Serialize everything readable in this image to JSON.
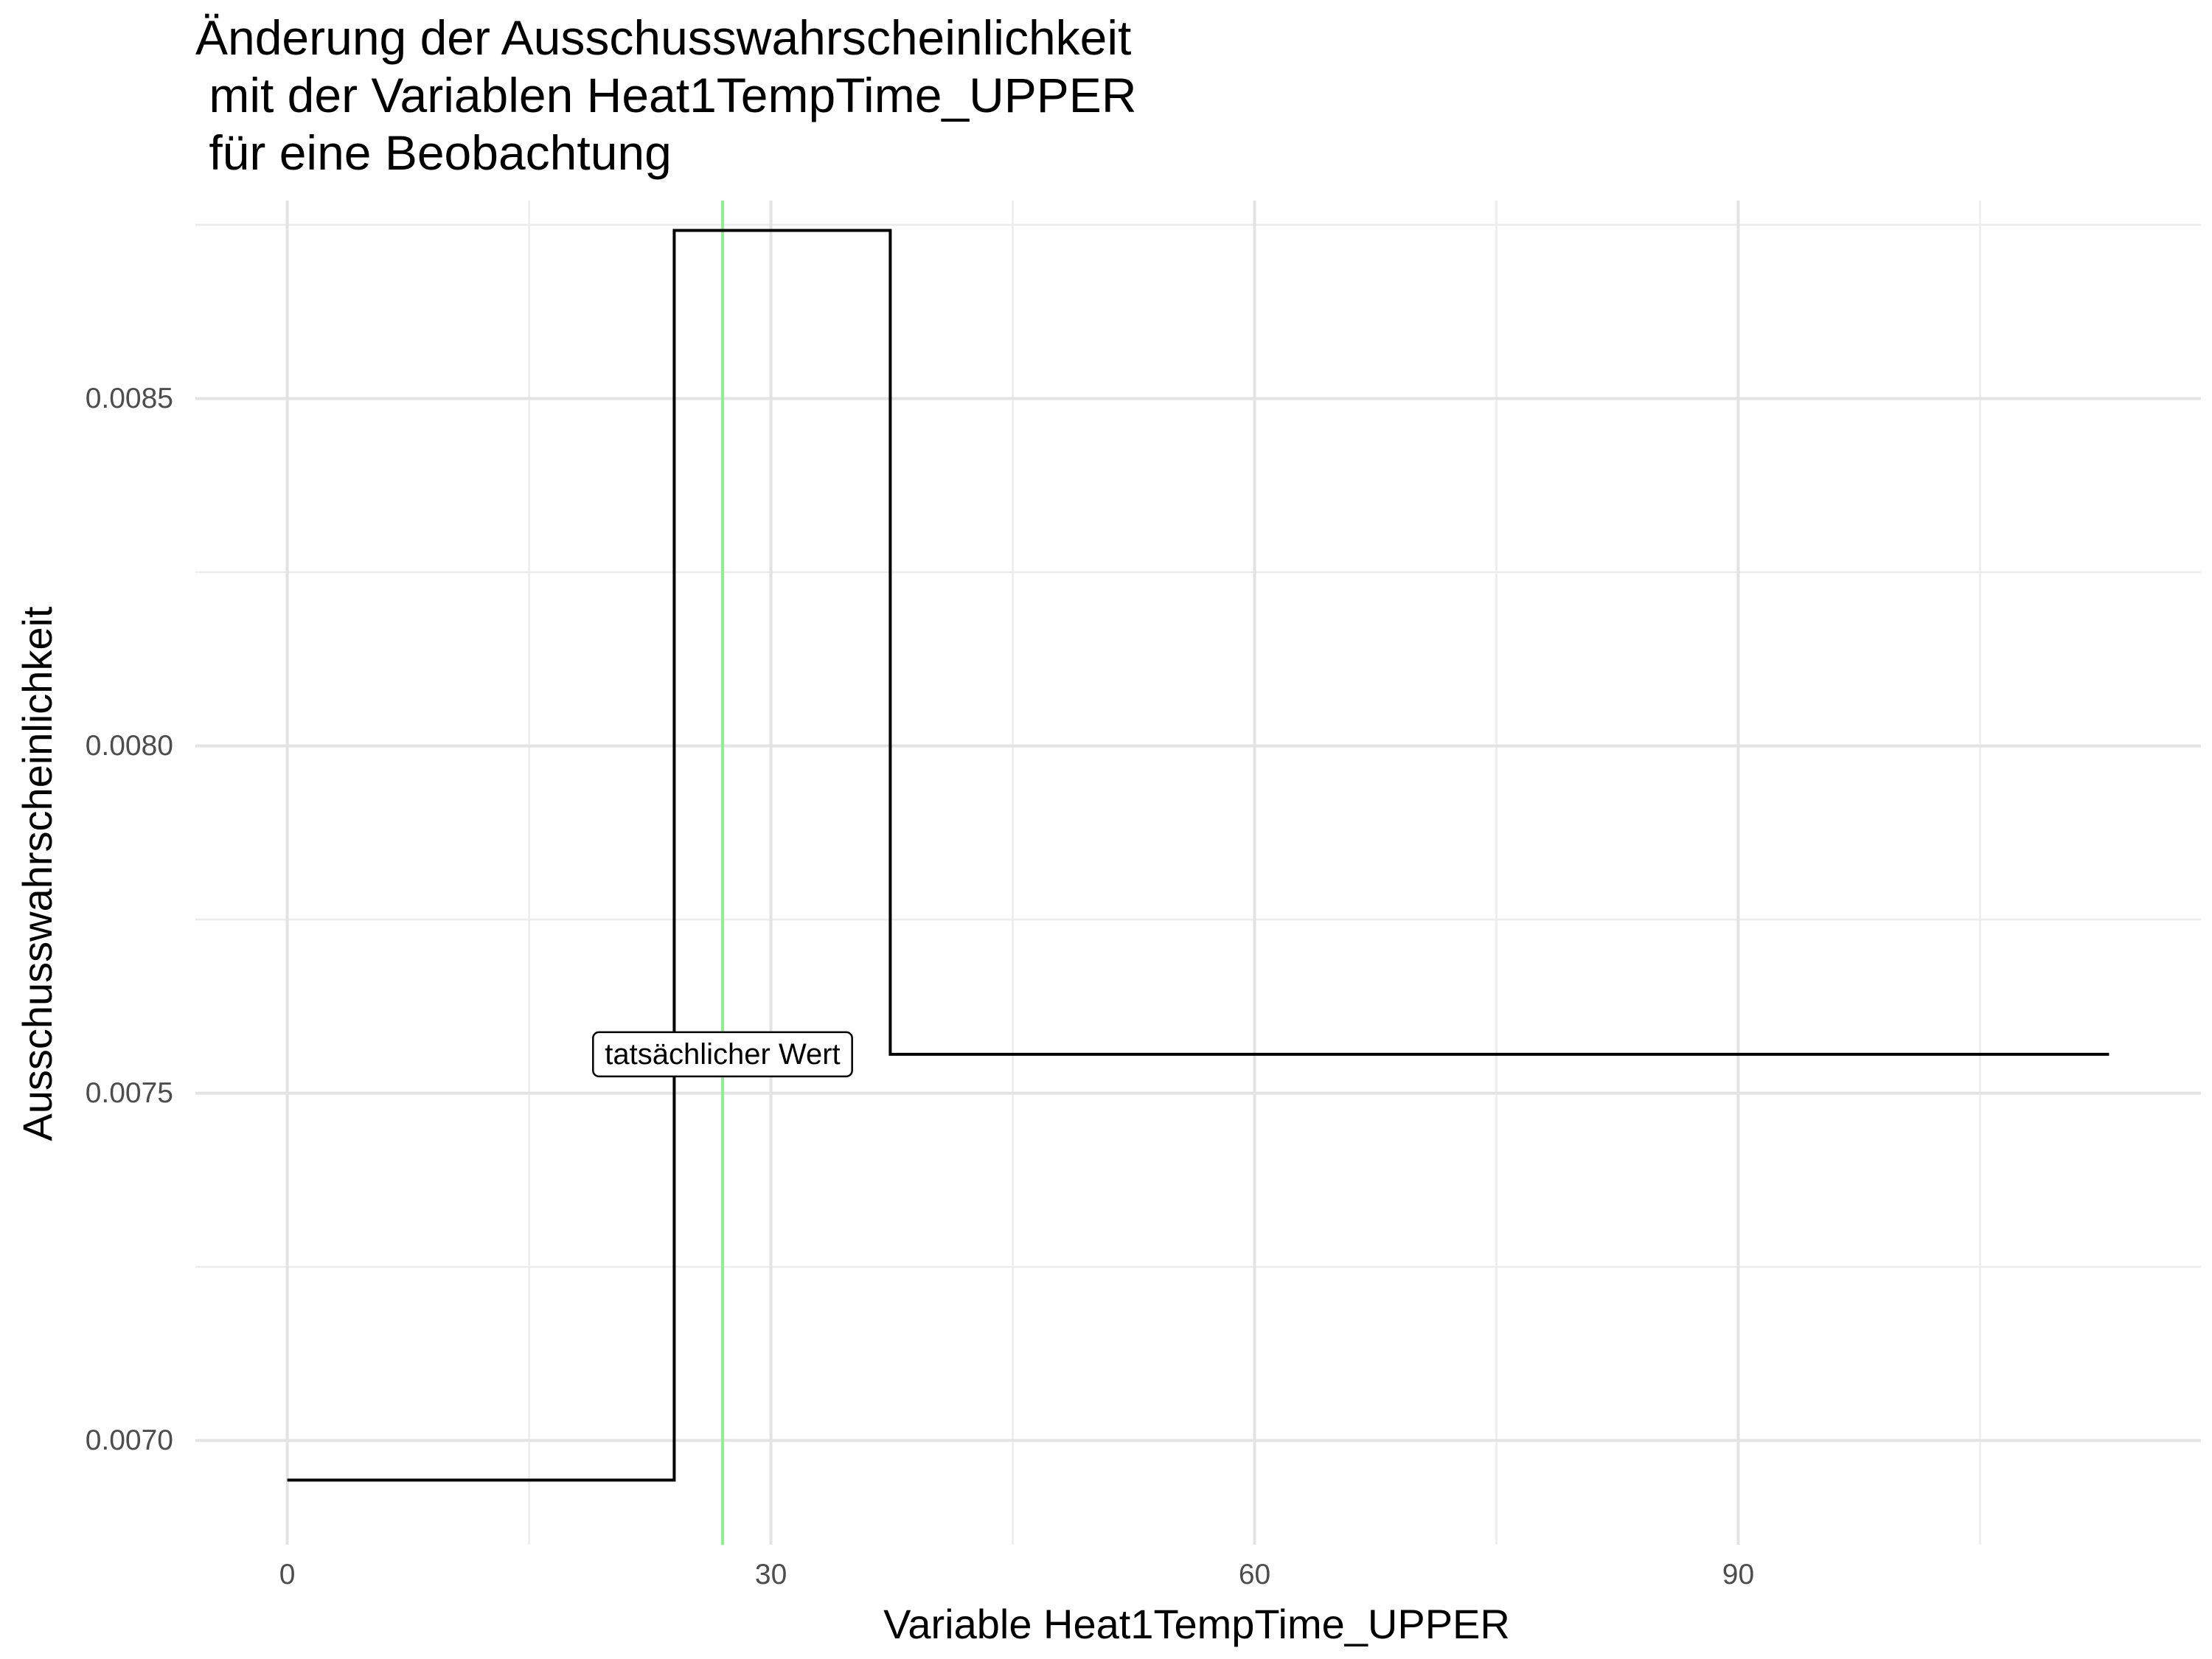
{
  "chart_data": {
    "type": "line",
    "title_lines": [
      "Änderung der Ausschusswahrscheinlichkeit",
      " mit der Variablen Heat1TempTime_UPPER",
      " für eine Beobachtung"
    ],
    "xlabel": "Variable Heat1TempTime_UPPER",
    "ylabel": "Ausschusswahrscheinlichkeit",
    "xlim": [
      -5.7,
      118.7
    ],
    "ylim": [
      0.00685,
      0.008785
    ],
    "x_ticks": [
      0,
      30,
      60,
      90
    ],
    "x_tick_labels": [
      "0",
      "30",
      "60",
      "90"
    ],
    "x_minor_ticks": [
      15,
      45,
      75,
      105
    ],
    "y_ticks": [
      0.007,
      0.0075,
      0.008,
      0.0085
    ],
    "y_tick_labels": [
      "0.0070",
      "0.0075",
      "0.0080",
      "0.0085"
    ],
    "y_minor_ticks": [
      0.00725,
      0.00775,
      0.00825,
      0.00875
    ],
    "grid": true,
    "step_series": {
      "color": "#000000",
      "x": [
        0,
        24,
        24,
        37.4,
        37.4,
        113
      ],
      "y": [
        0.006943,
        0.006943,
        0.008742,
        0.008742,
        0.007556,
        0.007556
      ]
    },
    "reference_line": {
      "x": 27,
      "color": "#90ee90"
    },
    "annotation": {
      "text": "tatsächlicher Wert",
      "x": 27,
      "y": 0.007556
    }
  }
}
